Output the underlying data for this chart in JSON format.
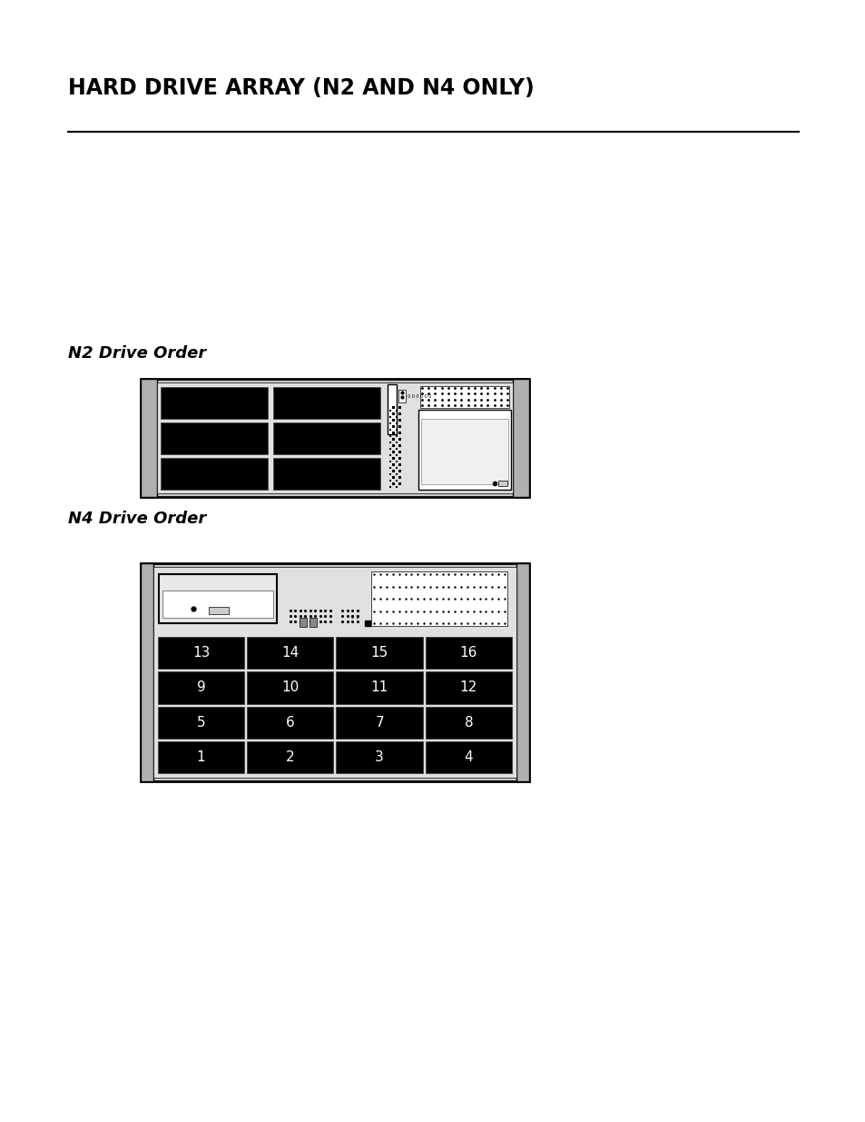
{
  "title": "HARD DRIVE ARRAY (N2 AND N4 ONLY)",
  "title_fontsize": 17,
  "title_fontweight": "bold",
  "bg_color": "#ffffff",
  "n2_label": "N2 Drive Order",
  "n4_label": "N4 Drive Order",
  "label_fontsize": 13,
  "label_fontweight": "bold",
  "label_fontstyle": "italic",
  "n4_drive_rows": [
    [
      13,
      14,
      15,
      16
    ],
    [
      9,
      10,
      11,
      12
    ],
    [
      5,
      6,
      7,
      8
    ],
    [
      1,
      2,
      3,
      4
    ]
  ],
  "cell_color": "#000000",
  "text_color": "#ffffff",
  "cell_fontsize": 11
}
